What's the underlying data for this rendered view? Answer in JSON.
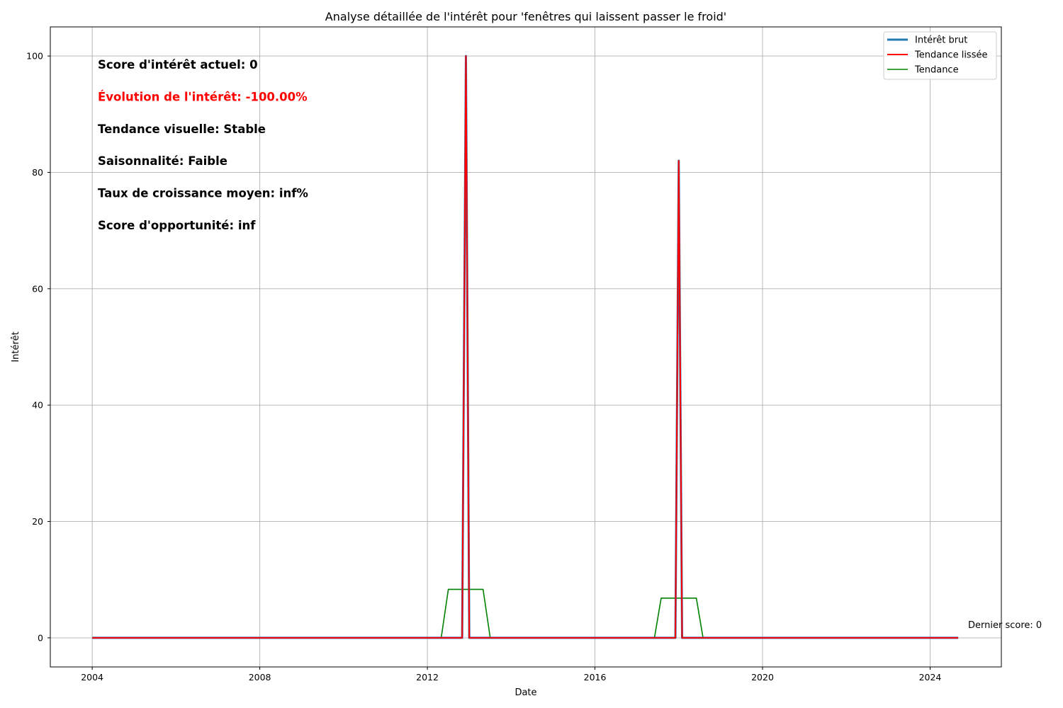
{
  "chart_data": {
    "type": "line",
    "title": "Analyse détaillée de l'intérêt pour 'fenêtres qui laissent passer le froid'",
    "xlabel": "Date",
    "ylabel": "Intérêt",
    "xlim": [
      2003.0,
      2025.7
    ],
    "ylim": [
      -5,
      105
    ],
    "xticks": [
      2004,
      2008,
      2012,
      2016,
      2020,
      2024
    ],
    "yticks": [
      0,
      20,
      40,
      60,
      80,
      100
    ],
    "grid": true,
    "legend_position": "top-right",
    "series": [
      {
        "name": "Intérêt brut",
        "color": "#1f77b4",
        "x": [
          2004.0,
          2012.83,
          2012.92,
          2013.0,
          2017.92,
          2018.0,
          2018.08,
          2024.67
        ],
        "y": [
          0,
          0,
          100,
          0,
          0,
          82,
          0,
          0
        ]
      },
      {
        "name": "Tendance lissée",
        "color": "#ff0000",
        "x": [
          2004.0,
          2012.83,
          2012.92,
          2013.0,
          2017.92,
          2018.0,
          2018.08,
          2024.67
        ],
        "y": [
          0,
          0,
          100,
          0,
          0,
          82,
          0,
          0
        ]
      },
      {
        "name": "Tendance",
        "color": "#008000",
        "x": [
          2004.5,
          2012.33,
          2012.5,
          2013.33,
          2013.5,
          2017.42,
          2017.58,
          2018.42,
          2018.58,
          2024.17
        ],
        "y": [
          0,
          0,
          8.33,
          8.33,
          0,
          0,
          6.83,
          6.83,
          0,
          0
        ]
      }
    ],
    "stats": [
      {
        "text": "Score d'intérêt actuel: 0",
        "color": "#000000"
      },
      {
        "text": "Évolution de l'intérêt: -100.00%",
        "color": "#ff0000"
      },
      {
        "text": "Tendance visuelle: Stable",
        "color": "#000000"
      },
      {
        "text": "Saisonnalité: Faible",
        "color": "#000000"
      },
      {
        "text": "Taux de croissance moyen: inf%",
        "color": "#000000"
      },
      {
        "text": "Score d'opportunité: inf",
        "color": "#000000"
      }
    ],
    "last_score_label": "Dernier score: 0"
  },
  "colors": {
    "grid": "#b0b0b0",
    "axis": "#000000"
  }
}
